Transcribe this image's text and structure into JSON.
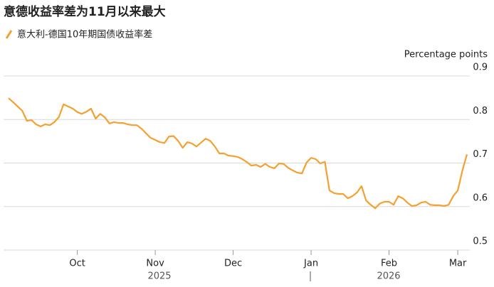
{
  "chart_data": {
    "type": "line",
    "title": "意德收益率差为11月以来最大",
    "y_axis_label": "Percentage points",
    "categories": [
      null,
      null,
      null,
      null,
      null,
      null,
      null,
      null,
      null,
      null,
      null,
      null,
      null,
      null,
      null,
      "Oct",
      null,
      null,
      null,
      null,
      null,
      null,
      null,
      null,
      null,
      null,
      null,
      null,
      null,
      null,
      null,
      null,
      "Nov",
      null,
      null,
      null,
      null,
      null,
      null,
      null,
      null,
      null,
      null,
      null,
      null,
      null,
      null,
      null,
      null,
      "Dec",
      null,
      null,
      null,
      null,
      null,
      null,
      null,
      null,
      null,
      null,
      null,
      null,
      null,
      null,
      null,
      null,
      "Jan",
      null,
      null,
      null,
      null,
      null,
      null,
      null,
      null,
      null,
      null,
      null,
      null,
      null,
      null,
      null,
      null,
      "Feb",
      null,
      null,
      null,
      null,
      null,
      null,
      null,
      null,
      null,
      null,
      null,
      null,
      null,
      null,
      "Mar",
      null,
      null
    ],
    "year_labels": [
      "2025",
      "2026"
    ],
    "series": [
      {
        "name": "意大利-德国10年期国债收益率差",
        "color": "#f5a030",
        "values": [
          0.849,
          0.84,
          0.83,
          0.82,
          0.797,
          0.799,
          0.789,
          0.784,
          0.789,
          0.787,
          0.794,
          0.806,
          0.835,
          0.83,
          0.825,
          0.817,
          0.813,
          0.818,
          0.825,
          0.802,
          0.813,
          0.805,
          0.791,
          0.794,
          0.792,
          0.792,
          0.789,
          0.787,
          0.787,
          0.779,
          0.768,
          0.758,
          0.753,
          0.748,
          0.746,
          0.761,
          0.762,
          0.751,
          0.735,
          0.748,
          0.745,
          0.738,
          0.747,
          0.756,
          0.751,
          0.738,
          0.722,
          0.722,
          0.717,
          0.716,
          0.714,
          0.709,
          0.702,
          0.694,
          0.696,
          0.691,
          0.698,
          0.691,
          0.688,
          0.699,
          0.698,
          0.689,
          0.683,
          0.678,
          0.676,
          0.701,
          0.712,
          0.709,
          0.699,
          0.703,
          0.637,
          0.631,
          0.629,
          0.629,
          0.619,
          0.624,
          0.632,
          0.647,
          0.614,
          0.604,
          0.596,
          0.607,
          0.611,
          0.611,
          0.604,
          0.624,
          0.619,
          0.609,
          0.601,
          0.603,
          0.609,
          0.611,
          0.604,
          0.603,
          0.603,
          0.601,
          0.604,
          0.624,
          0.637,
          0.683,
          0.72
        ]
      }
    ],
    "ylim": [
      0.5,
      0.9
    ],
    "yticks": [
      0.5,
      0.6,
      0.7,
      0.8,
      0.9
    ],
    "grid": true
  }
}
